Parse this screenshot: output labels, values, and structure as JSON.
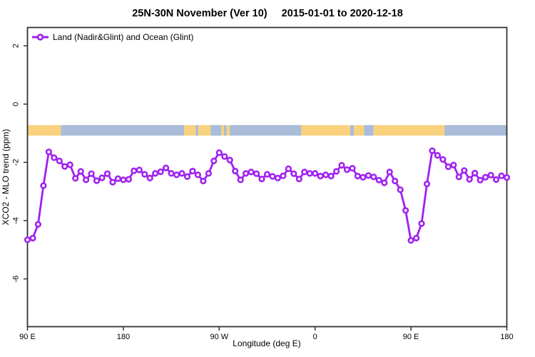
{
  "chart_data": {
    "type": "line",
    "title": "25N-30N November (Ver 10)",
    "title_dates": "2015-01-01 to 2020-12-18",
    "xlabel": "Longitude (deg E)",
    "ylabel": "XCO2 - MLO trend (ppm)",
    "legend": {
      "label": "Land (Nadir&Glint) and Ocean (Glint)",
      "position": "top-left"
    },
    "series_color": "#A020F0",
    "marker": "open-circle",
    "grid": false,
    "xlim_deg": [
      90,
      540
    ],
    "x_ticks": [
      {
        "deg": 90,
        "label": "90 E"
      },
      {
        "deg": 180,
        "label": "180"
      },
      {
        "deg": 270,
        "label": "90 W"
      },
      {
        "deg": 360,
        "label": "0"
      },
      {
        "deg": 450,
        "label": "90 E"
      },
      {
        "deg": 540,
        "label": "180"
      }
    ],
    "y_ticks": [
      2,
      0,
      -2,
      -4,
      -6
    ],
    "ylim": [
      -7.64,
      2.63
    ],
    "x_start_deg": 90,
    "x_step_deg": 5,
    "values_ppm": [
      -4.66,
      -4.6,
      -4.13,
      -2.8,
      -1.64,
      -1.84,
      -1.95,
      -2.14,
      -2.08,
      -2.55,
      -2.31,
      -2.6,
      -2.39,
      -2.63,
      -2.53,
      -2.39,
      -2.68,
      -2.56,
      -2.6,
      -2.58,
      -2.29,
      -2.26,
      -2.41,
      -2.54,
      -2.38,
      -2.32,
      -2.19,
      -2.38,
      -2.43,
      -2.38,
      -2.49,
      -2.3,
      -2.43,
      -2.64,
      -2.38,
      -1.95,
      -1.67,
      -1.8,
      -1.92,
      -2.3,
      -2.6,
      -2.38,
      -2.33,
      -2.39,
      -2.57,
      -2.41,
      -2.48,
      -2.54,
      -2.46,
      -2.22,
      -2.39,
      -2.57,
      -2.33,
      -2.38,
      -2.38,
      -2.47,
      -2.43,
      -2.47,
      -2.31,
      -2.1,
      -2.25,
      -2.2,
      -2.47,
      -2.51,
      -2.45,
      -2.5,
      -2.61,
      -2.7,
      -2.33,
      -2.64,
      -2.94,
      -3.65,
      -4.68,
      -4.6,
      -4.1,
      -2.74,
      -1.6,
      -1.76,
      -1.9,
      -2.15,
      -2.09,
      -2.5,
      -2.28,
      -2.58,
      -2.37,
      -2.61,
      -2.51,
      -2.44,
      -2.59,
      -2.46,
      -2.52
    ],
    "coastline_strip": {
      "y_range_ppm": [
        -0.72,
        -1.08
      ],
      "land_color": "#FAD27E",
      "ocean_color": "#A9BCD9",
      "segments": [
        {
          "type": "land",
          "from_deg": 90,
          "to_deg": 121.5
        },
        {
          "type": "ocean",
          "from_deg": 121.5,
          "to_deg": 237
        },
        {
          "type": "land",
          "from_deg": 237,
          "to_deg": 248
        },
        {
          "type": "ocean",
          "from_deg": 248,
          "to_deg": 250.5
        },
        {
          "type": "land",
          "from_deg": 250.5,
          "to_deg": 262
        },
        {
          "type": "ocean",
          "from_deg": 262,
          "to_deg": 272
        },
        {
          "type": "land",
          "from_deg": 272,
          "to_deg": 274.5
        },
        {
          "type": "ocean",
          "from_deg": 274.5,
          "to_deg": 277
        },
        {
          "type": "land",
          "from_deg": 277,
          "to_deg": 280
        },
        {
          "type": "ocean",
          "from_deg": 280,
          "to_deg": 347
        },
        {
          "type": "land",
          "from_deg": 347,
          "to_deg": 393
        },
        {
          "type": "ocean",
          "from_deg": 393,
          "to_deg": 396.5
        },
        {
          "type": "land",
          "from_deg": 396.5,
          "to_deg": 406
        },
        {
          "type": "ocean",
          "from_deg": 406,
          "to_deg": 415
        },
        {
          "type": "land",
          "from_deg": 415,
          "to_deg": 481.5
        },
        {
          "type": "ocean",
          "from_deg": 481.5,
          "to_deg": 540
        }
      ]
    },
    "frame_color": "#333333"
  }
}
